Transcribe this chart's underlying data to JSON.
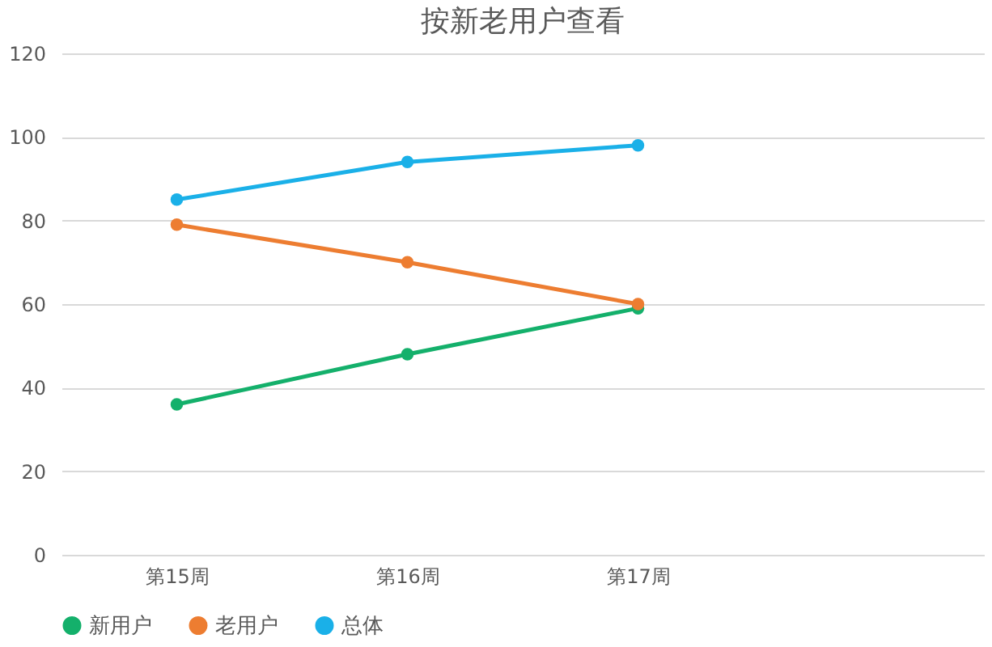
{
  "chart_data": {
    "type": "line",
    "title": "按新老用户查看",
    "categories": [
      "第15周",
      "第16周",
      "第17周",
      null
    ],
    "series": [
      {
        "name": "新用户",
        "color": "#14b06b",
        "values": [
          36,
          48,
          59,
          null
        ]
      },
      {
        "name": "老用户",
        "color": "#ed7d31",
        "values": [
          79,
          70,
          60,
          null
        ]
      },
      {
        "name": "总体",
        "color": "#1ab0e8",
        "values": [
          85,
          94,
          98,
          null
        ]
      }
    ],
    "ylim": [
      0,
      120
    ],
    "yticks": [
      0,
      20,
      40,
      60,
      80,
      100,
      120
    ],
    "grid": "y",
    "legend": "bottom",
    "marker": "circle",
    "line_style": "solid"
  }
}
